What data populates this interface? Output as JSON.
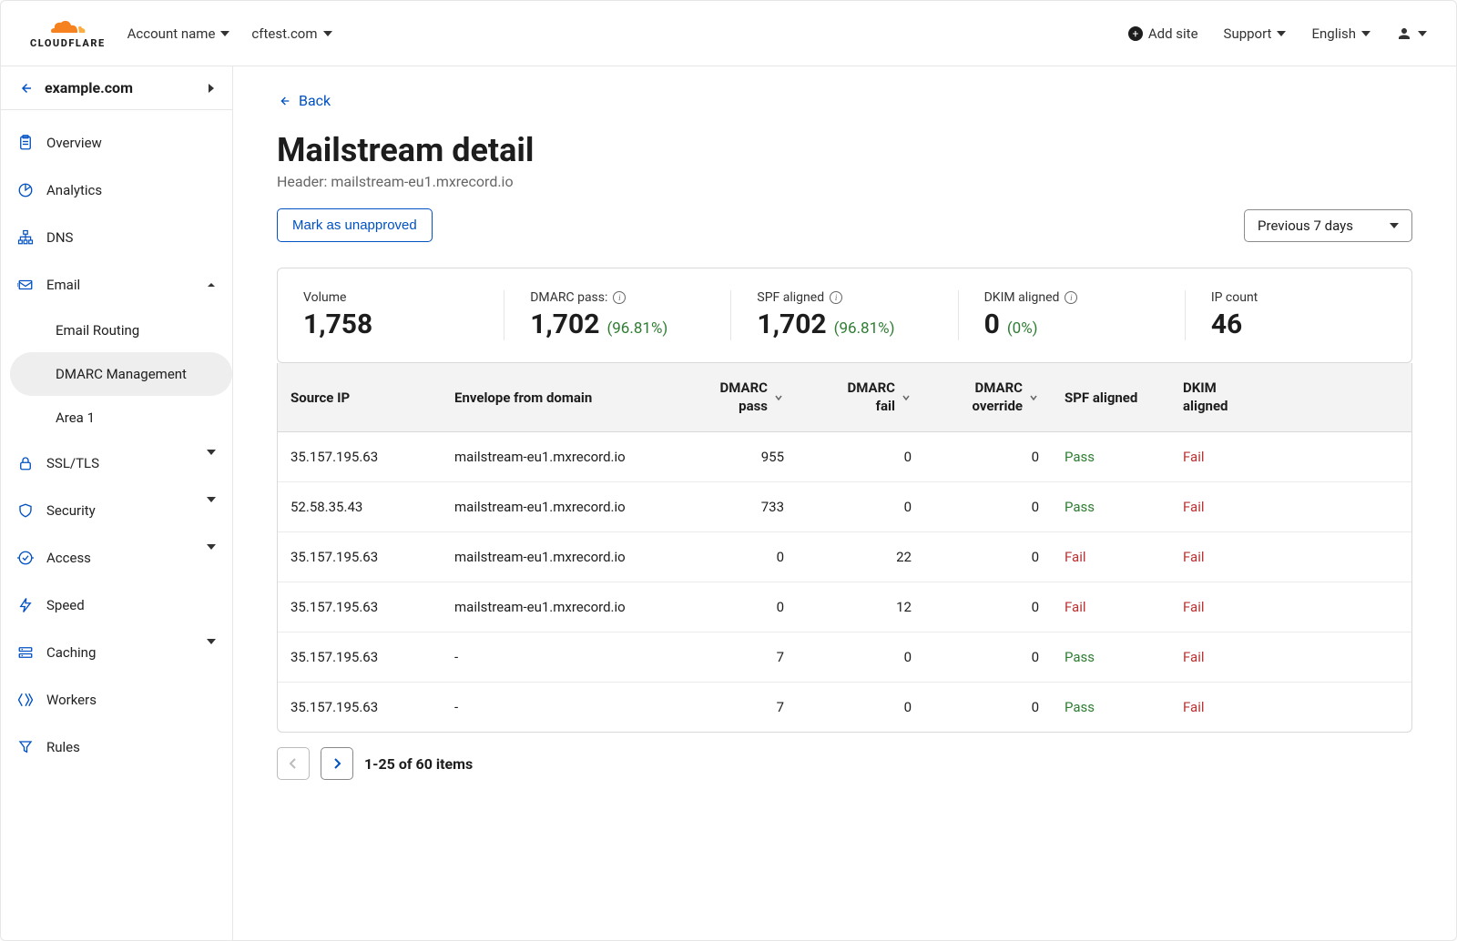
{
  "brand": "CLOUDFLARE",
  "topbar": {
    "account": "Account name",
    "domain": "cftest.com",
    "add_site": "Add site",
    "support": "Support",
    "language": "English"
  },
  "sidebar": {
    "current_domain": "example.com",
    "items": [
      {
        "label": "Overview",
        "icon": "clipboard"
      },
      {
        "label": "Analytics",
        "icon": "pie"
      },
      {
        "label": "DNS",
        "icon": "hierarchy"
      },
      {
        "label": "Email",
        "icon": "email",
        "expanded": true,
        "children": [
          {
            "label": "Email Routing"
          },
          {
            "label": "DMARC Management",
            "active": true
          },
          {
            "label": "Area 1"
          }
        ]
      },
      {
        "label": "SSL/TLS",
        "icon": "lock",
        "chevron": true
      },
      {
        "label": "Security",
        "icon": "shield",
        "chevron": true
      },
      {
        "label": "Access",
        "icon": "access",
        "chevron": true
      },
      {
        "label": "Speed",
        "icon": "bolt"
      },
      {
        "label": "Caching",
        "icon": "cache",
        "chevron": true
      },
      {
        "label": "Workers",
        "icon": "workers"
      },
      {
        "label": "Rules",
        "icon": "filter"
      }
    ]
  },
  "main": {
    "back": "Back",
    "title": "Mailstream detail",
    "subtitle": "Header: mailstream-eu1.mxrecord.io",
    "mark_btn": "Mark as unapproved",
    "range": "Previous 7 days",
    "stats": [
      {
        "label": "Volume",
        "value": "1,758"
      },
      {
        "label": "DMARC pass:",
        "value": "1,702",
        "pct": "(96.81%)",
        "info": true
      },
      {
        "label": "SPF aligned",
        "value": "1,702",
        "pct": "(96.81%)",
        "info": true
      },
      {
        "label": "DKIM aligned",
        "value": "0",
        "pct": "(0%)",
        "info": true
      },
      {
        "label": "IP count",
        "value": "46"
      }
    ],
    "columns": [
      "Source IP",
      "Envelope from domain",
      "DMARC pass",
      "DMARC fail",
      "DMARC override",
      "SPF aligned",
      "DKIM aligned"
    ],
    "rows": [
      {
        "ip": "35.157.195.63",
        "env": "mailstream-eu1.mxrecord.io",
        "pass": "955",
        "fail": "0",
        "over": "0",
        "spf": "Pass",
        "dkim": "Fail"
      },
      {
        "ip": "52.58.35.43",
        "env": "mailstream-eu1.mxrecord.io",
        "pass": "733",
        "fail": "0",
        "over": "0",
        "spf": "Pass",
        "dkim": "Fail"
      },
      {
        "ip": "35.157.195.63",
        "env": "mailstream-eu1.mxrecord.io",
        "pass": "0",
        "fail": "22",
        "over": "0",
        "spf": "Fail",
        "dkim": "Fail"
      },
      {
        "ip": "35.157.195.63",
        "env": "mailstream-eu1.mxrecord.io",
        "pass": "0",
        "fail": "12",
        "over": "0",
        "spf": "Fail",
        "dkim": "Fail"
      },
      {
        "ip": "35.157.195.63",
        "env": "-",
        "pass": "7",
        "fail": "0",
        "over": "0",
        "spf": "Pass",
        "dkim": "Fail"
      },
      {
        "ip": "35.157.195.63",
        "env": "-",
        "pass": "7",
        "fail": "0",
        "over": "0",
        "spf": "Pass",
        "dkim": "Fail"
      }
    ],
    "pagination": "1-25 of 60 items"
  },
  "colors": {
    "accent": "#0051c3",
    "pass": "#2f7d33",
    "fail": "#b83232",
    "border": "#d9d9d9",
    "text_muted": "#666666"
  }
}
